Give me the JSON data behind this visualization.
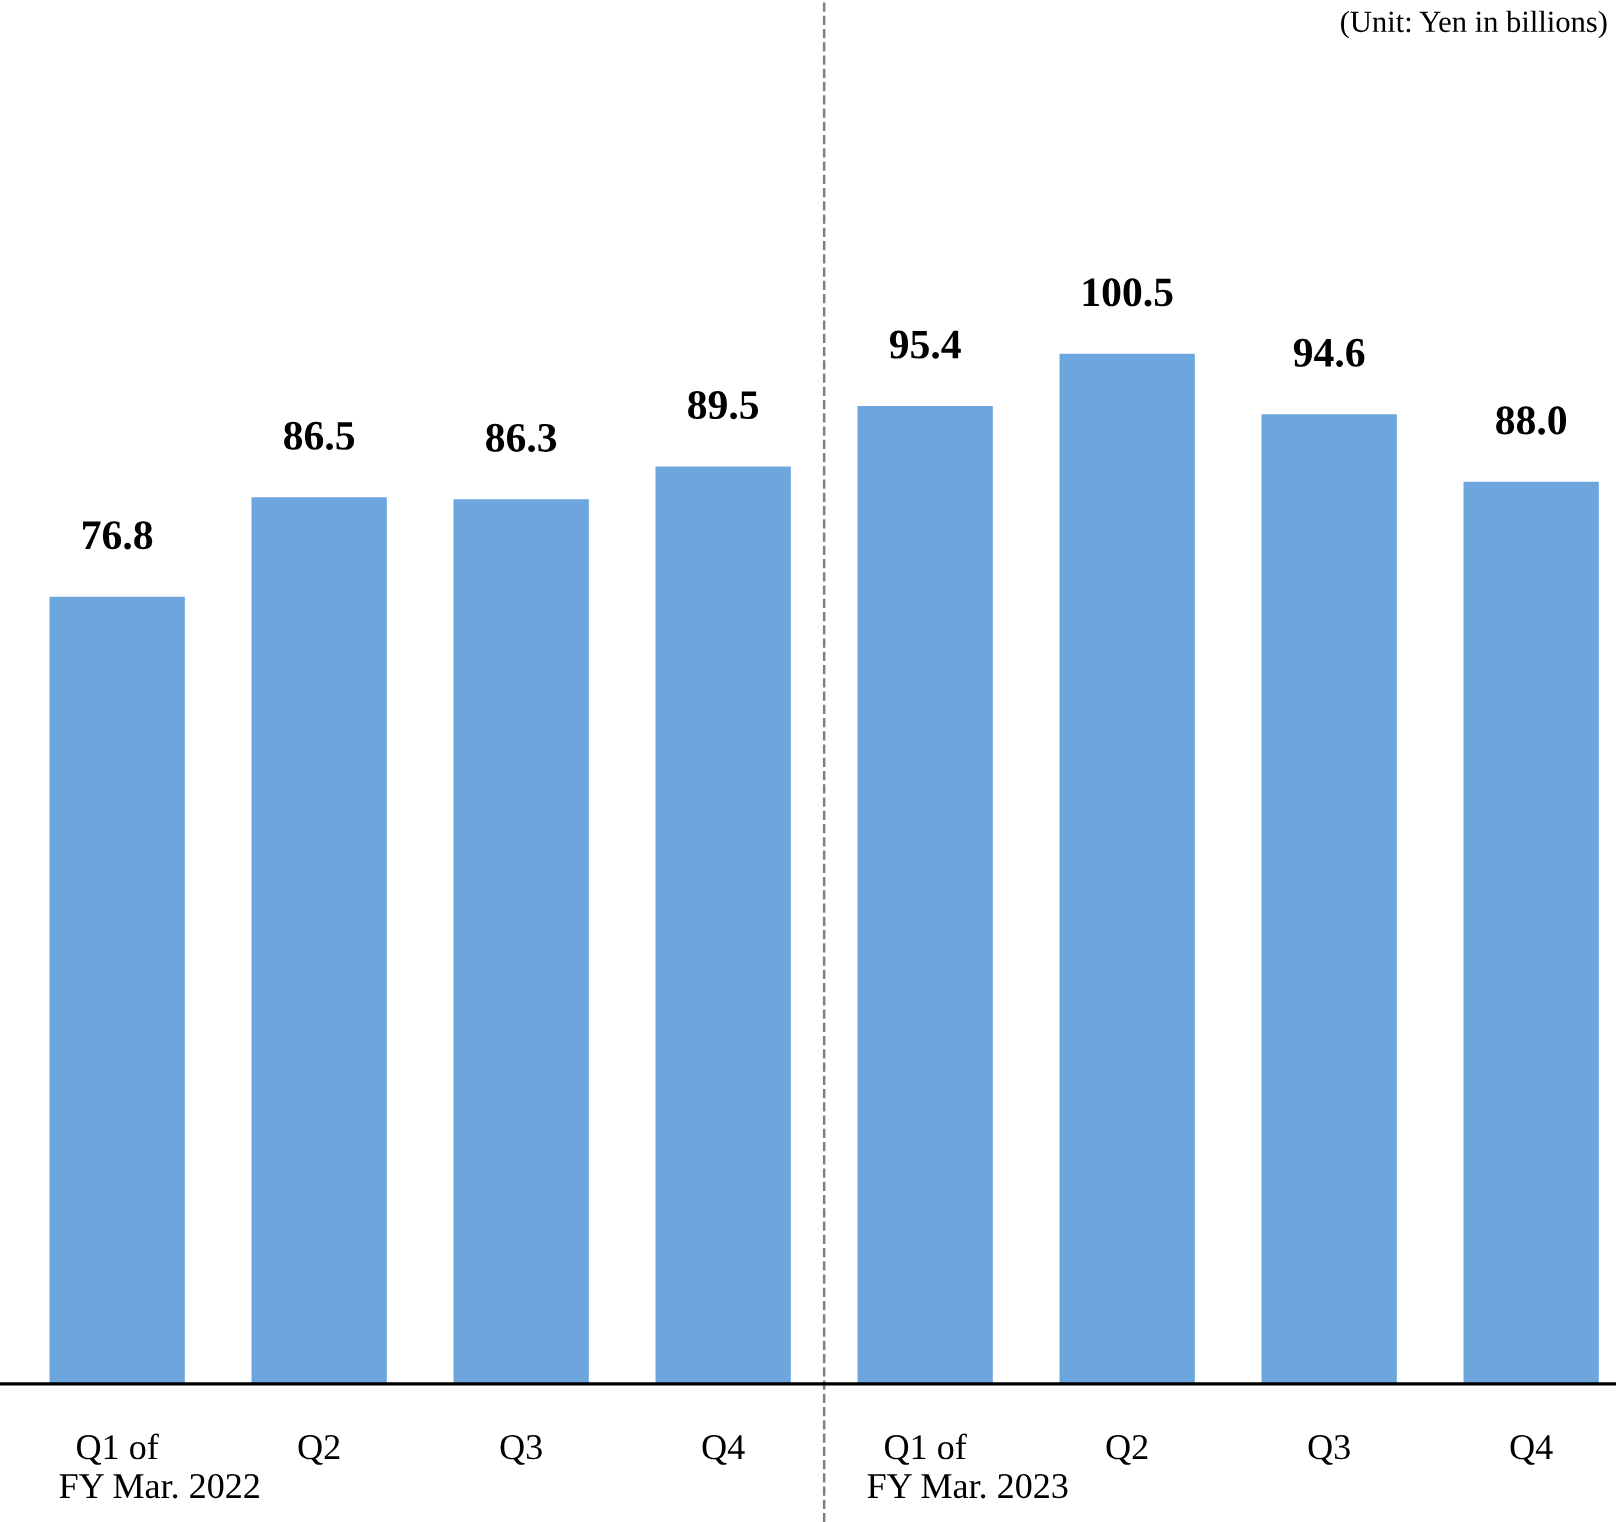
{
  "chart_data": {
    "type": "bar",
    "categories": [
      "Q1 of",
      "Q2",
      "Q3",
      "Q4",
      "Q1 of",
      "Q2",
      "Q3",
      "Q4"
    ],
    "values": [
      76.8,
      86.5,
      86.3,
      89.5,
      95.4,
      100.5,
      94.6,
      88.0
    ],
    "value_labels": [
      "76.8",
      "86.5",
      "86.3",
      "89.5",
      "95.4",
      "100.5",
      "94.6",
      "88.0"
    ],
    "color": "#6ca6dc",
    "ylim": [
      0,
      135
    ],
    "tick_labels": "x",
    "grid": false,
    "annotations": [
      "FY Mar. 2022",
      "FY Mar. 2023",
      "(Unit: Yen in billions)"
    ]
  }
}
